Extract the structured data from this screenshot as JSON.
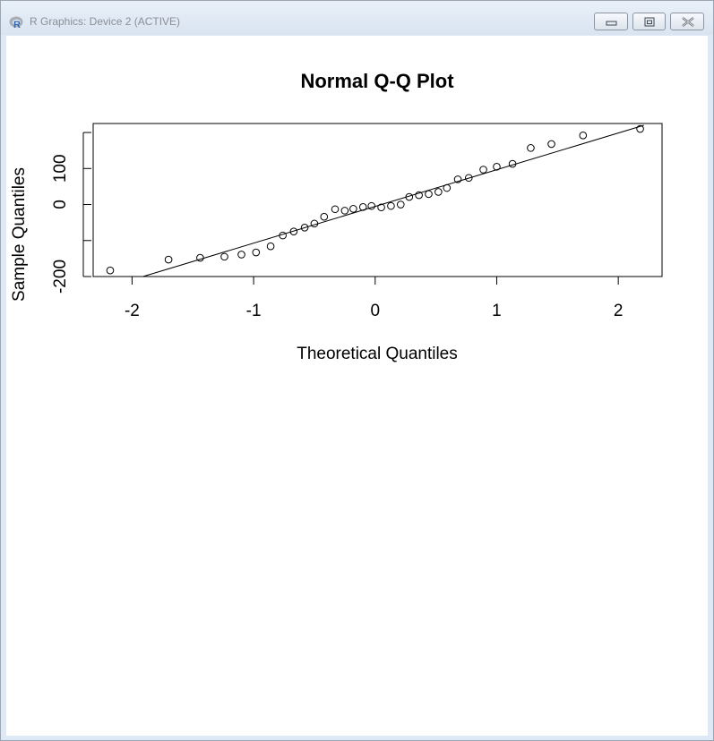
{
  "window": {
    "title": "R Graphics: Device 2 (ACTIVE)",
    "app_icon": "r-logo-icon",
    "controls": [
      "minimize-icon",
      "maximize-icon",
      "close-icon"
    ]
  },
  "chart_data": {
    "type": "scatter",
    "title": "Normal Q-Q Plot",
    "xlabel": "Theoretical Quantiles",
    "ylabel": "Sample Quantiles",
    "xlim": [
      -2.32,
      2.36
    ],
    "ylim": [
      -200,
      225
    ],
    "x_ticks": [
      -2,
      -1,
      0,
      1,
      2
    ],
    "x_tick_labels": [
      "-2",
      "-1",
      "0",
      "1",
      "2"
    ],
    "y_ticks": [
      -200,
      -100,
      0,
      100,
      200
    ],
    "y_tick_labels": [
      "-200",
      "",
      "0",
      "100",
      ""
    ],
    "grid": false,
    "series": [
      {
        "marker": "open-circle",
        "x": [
          -2.18,
          -1.7,
          -1.44,
          -1.24,
          -1.1,
          -0.98,
          -0.86,
          -0.76,
          -0.67,
          -0.58,
          -0.5,
          -0.42,
          -0.33,
          -0.25,
          -0.18,
          -0.1,
          -0.03,
          0.05,
          0.13,
          0.21,
          0.28,
          0.36,
          0.44,
          0.52,
          0.59,
          0.68,
          0.77,
          0.89,
          1.0,
          1.13,
          1.28,
          1.45,
          1.71,
          2.18
        ],
        "y": [
          -183,
          -153,
          -148,
          -145,
          -139,
          -133,
          -116,
          -86,
          -75,
          -64,
          -53,
          -34,
          -13,
          -17,
          -12,
          -7,
          -4,
          -8,
          -4,
          0,
          21,
          26,
          29,
          35,
          46,
          70,
          74,
          97,
          105,
          113,
          157,
          168,
          192,
          210
        ]
      },
      {
        "type": "line",
        "x": [
          -1.91,
          2.21
        ],
        "y": [
          -200,
          220
        ]
      }
    ]
  }
}
